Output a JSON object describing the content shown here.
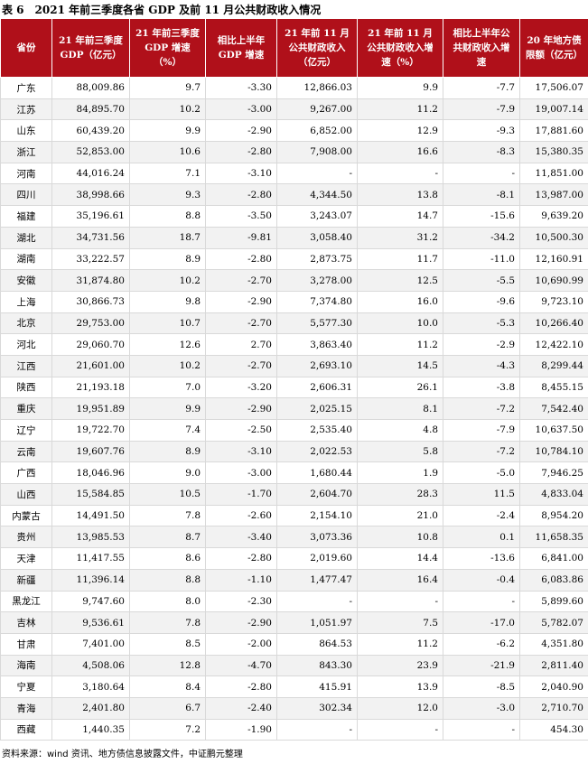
{
  "title": "表 6　2021 年前三季度各省 GDP 及前 11 月公共财政收入情况",
  "table": {
    "header": [
      "省份",
      "21 年前三季度 GDP（亿元）",
      "21 年前三季度 GDP 增速（%）",
      "相比上半年 GDP 增速",
      "21 年前 11 月公共财政收入（亿元）",
      "21 年前 11 月公共财政收入增速（%）",
      "相比上半年公共财政收入增速",
      "20 年地方债限额（亿元）"
    ],
    "rows": [
      [
        "广东",
        "88,009.86",
        "9.7",
        "-3.30",
        "12,866.03",
        "9.9",
        "-7.7",
        "17,506.07"
      ],
      [
        "江苏",
        "84,895.70",
        "10.2",
        "-3.00",
        "9,267.00",
        "11.2",
        "-7.9",
        "19,007.14"
      ],
      [
        "山东",
        "60,439.20",
        "9.9",
        "-2.90",
        "6,852.00",
        "12.9",
        "-9.3",
        "17,881.60"
      ],
      [
        "浙江",
        "52,853.00",
        "10.6",
        "-2.80",
        "7,908.00",
        "16.6",
        "-8.3",
        "15,380.35"
      ],
      [
        "河南",
        "44,016.24",
        "7.1",
        "-3.10",
        "-",
        "-",
        "-",
        "11,851.00"
      ],
      [
        "四川",
        "38,998.66",
        "9.3",
        "-2.80",
        "4,344.50",
        "13.8",
        "-8.1",
        "13,987.00"
      ],
      [
        "福建",
        "35,196.61",
        "8.8",
        "-3.50",
        "3,243.07",
        "14.7",
        "-15.6",
        "9,639.20"
      ],
      [
        "湖北",
        "34,731.56",
        "18.7",
        "-9.81",
        "3,058.40",
        "31.2",
        "-34.2",
        "10,500.30"
      ],
      [
        "湖南",
        "33,222.57",
        "8.9",
        "-2.80",
        "2,873.75",
        "11.7",
        "-11.0",
        "12,160.91"
      ],
      [
        "安徽",
        "31,874.80",
        "10.2",
        "-2.70",
        "3,278.00",
        "12.5",
        "-5.5",
        "10,690.99"
      ],
      [
        "上海",
        "30,866.73",
        "9.8",
        "-2.90",
        "7,374.80",
        "16.0",
        "-9.6",
        "9,723.10"
      ],
      [
        "北京",
        "29,753.00",
        "10.7",
        "-2.70",
        "5,577.30",
        "10.0",
        "-5.3",
        "10,266.40"
      ],
      [
        "河北",
        "29,060.70",
        "12.6",
        "2.70",
        "3,863.40",
        "11.2",
        "-2.9",
        "12,422.10"
      ],
      [
        "江西",
        "21,601.00",
        "10.2",
        "-2.70",
        "2,693.10",
        "14.5",
        "-4.3",
        "8,299.44"
      ],
      [
        "陕西",
        "21,193.18",
        "7.0",
        "-3.20",
        "2,606.31",
        "26.1",
        "-3.8",
        "8,455.15"
      ],
      [
        "重庆",
        "19,951.89",
        "9.9",
        "-2.90",
        "2,025.15",
        "8.1",
        "-7.2",
        "7,542.40"
      ],
      [
        "辽宁",
        "19,722.70",
        "7.4",
        "-2.50",
        "2,535.40",
        "4.8",
        "-7.9",
        "10,637.50"
      ],
      [
        "云南",
        "19,607.76",
        "8.9",
        "-3.10",
        "2,022.53",
        "5.8",
        "-7.2",
        "10,784.10"
      ],
      [
        "广西",
        "18,046.96",
        "9.0",
        "-3.00",
        "1,680.44",
        "1.9",
        "-5.0",
        "7,946.25"
      ],
      [
        "山西",
        "15,584.85",
        "10.5",
        "-1.70",
        "2,604.70",
        "28.3",
        "11.5",
        "4,833.04"
      ],
      [
        "内蒙古",
        "14,491.50",
        "7.8",
        "-2.60",
        "2,154.10",
        "21.0",
        "-2.4",
        "8,954.20"
      ],
      [
        "贵州",
        "13,985.53",
        "8.7",
        "-3.40",
        "3,073.36",
        "10.8",
        "0.1",
        "11,658.35"
      ],
      [
        "天津",
        "11,417.55",
        "8.6",
        "-2.80",
        "2,019.60",
        "14.4",
        "-13.6",
        "6,841.00"
      ],
      [
        "新疆",
        "11,396.14",
        "8.8",
        "-1.10",
        "1,477.47",
        "16.4",
        "-0.4",
        "6,083.86"
      ],
      [
        "黑龙江",
        "9,747.60",
        "8.0",
        "-2.30",
        "-",
        "-",
        "-",
        "5,899.60"
      ],
      [
        "吉林",
        "9,536.61",
        "7.8",
        "-2.90",
        "1,051.97",
        "7.5",
        "-17.0",
        "5,782.07"
      ],
      [
        "甘肃",
        "7,401.00",
        "8.5",
        "-2.00",
        "864.53",
        "11.2",
        "-6.2",
        "4,351.80"
      ],
      [
        "海南",
        "4,508.06",
        "12.8",
        "-4.70",
        "843.30",
        "23.9",
        "-21.9",
        "2,811.40"
      ],
      [
        "宁夏",
        "3,180.64",
        "8.4",
        "-2.80",
        "415.91",
        "13.9",
        "-8.5",
        "2,040.90"
      ],
      [
        "青海",
        "2,401.80",
        "6.7",
        "-2.40",
        "302.34",
        "12.0",
        "-3.0",
        "2,710.70"
      ],
      [
        "西藏",
        "1,440.35",
        "7.2",
        "-1.90",
        "-",
        "-",
        "-",
        "454.30"
      ]
    ]
  },
  "source": "资料来源：wind 资讯、地方债信息披露文件，中证鹏元整理"
}
